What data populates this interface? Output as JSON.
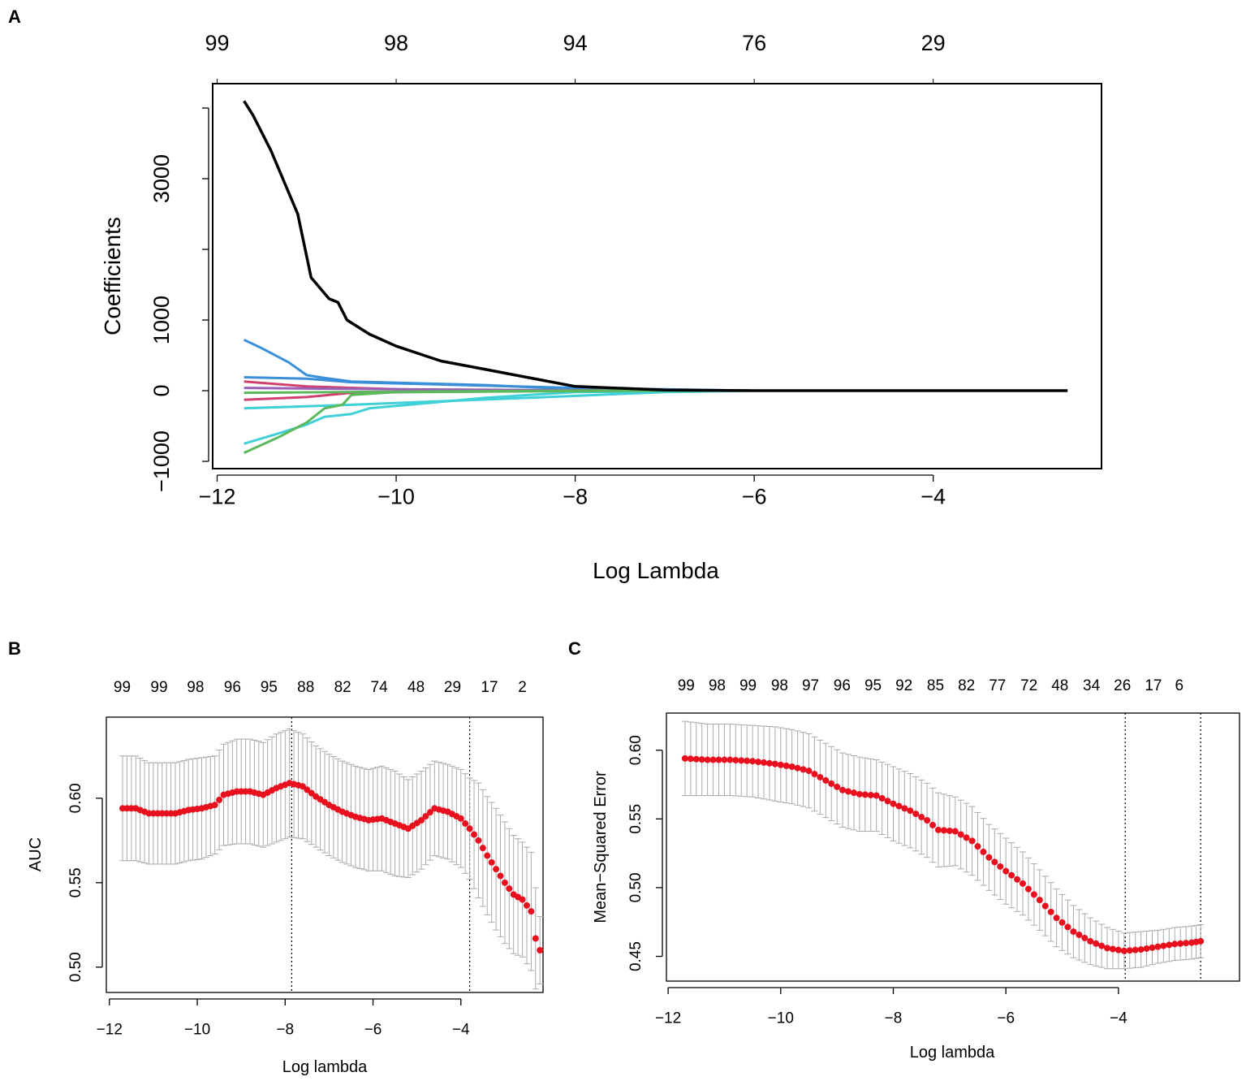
{
  "chart_data": [
    {
      "panel": "A",
      "type": "line",
      "xlabel": "Log Lambda",
      "ylabel": "Coefficients",
      "xlim": [
        -12.05,
        -2.12
      ],
      "ylim": [
        -1103,
        4345
      ],
      "x_ticks": [
        -12,
        -10,
        -8,
        -6,
        -4
      ],
      "x_tick_labels": [
        "−12",
        "−10",
        "−8",
        "−6",
        "−4"
      ],
      "y_ticks": [
        -1000,
        0,
        1000,
        2000,
        3000,
        4000
      ],
      "y_tick_labels": [
        "−1000",
        "0",
        "1000",
        "",
        "3000",
        ""
      ],
      "top_ticks": [
        -12,
        -10,
        -8,
        -6,
        -4
      ],
      "top_tick_labels": [
        "99",
        "98",
        "94",
        "76",
        "29"
      ],
      "series": [
        {
          "color": "#3a8fd9",
          "points": [
            [
              -11.7,
              720
            ],
            [
              -11.5,
              600
            ],
            [
              -11.2,
              400
            ],
            [
              -11.0,
              220
            ],
            [
              -10.8,
              180
            ],
            [
              -10.5,
              130
            ],
            [
              -9,
              80
            ],
            [
              -8,
              20
            ],
            [
              -6,
              0
            ],
            [
              -2.5,
              0
            ]
          ]
        },
        {
          "color": "#3a8fd9",
          "points": [
            [
              -11.7,
              190
            ],
            [
              -11,
              170
            ],
            [
              -10.5,
              120
            ],
            [
              -9,
              70
            ],
            [
              -8,
              40
            ],
            [
              -6,
              0
            ],
            [
              -2.5,
              0
            ]
          ]
        },
        {
          "color": "#d1416c",
          "points": [
            [
              -11.7,
              130
            ],
            [
              -11,
              60
            ],
            [
              -10,
              20
            ],
            [
              -9,
              5
            ],
            [
              -6,
              0
            ],
            [
              -2.5,
              0
            ]
          ]
        },
        {
          "color": "#d1416c",
          "points": [
            [
              -11.7,
              -130
            ],
            [
              -11,
              -90
            ],
            [
              -10.5,
              -30
            ],
            [
              -9,
              -5
            ],
            [
              -6,
              0
            ],
            [
              -2.5,
              0
            ]
          ]
        },
        {
          "color": "#9a5fb5",
          "points": [
            [
              -11.7,
              40
            ],
            [
              -10,
              20
            ],
            [
              -8,
              5
            ],
            [
              -6,
              0
            ],
            [
              -2.5,
              0
            ]
          ]
        },
        {
          "color": "#40d0d8",
          "points": [
            [
              -11.7,
              -750
            ],
            [
              -11.3,
              -600
            ],
            [
              -11,
              -480
            ],
            [
              -10.8,
              -370
            ],
            [
              -10.5,
              -330
            ],
            [
              -10.3,
              -250
            ],
            [
              -9,
              -100
            ],
            [
              -8,
              -20
            ],
            [
              -6,
              0
            ],
            [
              -2.5,
              0
            ]
          ]
        },
        {
          "color": "#40d0d8",
          "points": [
            [
              -11.7,
              -250
            ],
            [
              -11,
              -220
            ],
            [
              -10.5,
              -200
            ],
            [
              -8.5,
              -100
            ],
            [
              -7,
              -20
            ],
            [
              -6,
              0
            ],
            [
              -2.5,
              0
            ]
          ]
        },
        {
          "color": "#5cb85c",
          "points": [
            [
              -11.7,
              -880
            ],
            [
              -11.3,
              -650
            ],
            [
              -11,
              -450
            ],
            [
              -10.8,
              -250
            ],
            [
              -10.6,
              -200
            ],
            [
              -10.5,
              -60
            ],
            [
              -10,
              -20
            ],
            [
              -7,
              0
            ],
            [
              -2.5,
              0
            ]
          ]
        },
        {
          "color": "#5cb85c",
          "points": [
            [
              -11.7,
              -30
            ],
            [
              -10,
              -15
            ],
            [
              -8,
              0
            ],
            [
              -2.5,
              0
            ]
          ]
        },
        {
          "color": "#000000",
          "points": [
            [
              -11.7,
              4100
            ],
            [
              -11.6,
              3900
            ],
            [
              -11.4,
              3400
            ],
            [
              -11.1,
              2500
            ],
            [
              -10.95,
              1600
            ],
            [
              -10.75,
              1300
            ],
            [
              -10.65,
              1250
            ],
            [
              -10.55,
              1000
            ],
            [
              -10.3,
              800
            ],
            [
              -10,
              630
            ],
            [
              -9.5,
              420
            ],
            [
              -9,
              300
            ],
            [
              -8.5,
              180
            ],
            [
              -8,
              60
            ],
            [
              -7,
              10
            ],
            [
              -6,
              0
            ],
            [
              -2.5,
              0
            ]
          ]
        }
      ]
    },
    {
      "panel": "B",
      "type": "scatter",
      "xlabel": "Log lambda",
      "ylabel": "AUC",
      "xlim": [
        -12.07,
        -2.13
      ],
      "ylim": [
        0.485,
        0.648
      ],
      "x_ticks": [
        -12,
        -10,
        -8,
        -6,
        -4
      ],
      "x_tick_labels": [
        "−12",
        "−10",
        "−8",
        "−6",
        "−4"
      ],
      "y_ticks": [
        0.5,
        0.55,
        0.6
      ],
      "y_tick_labels": [
        "0.50",
        "0.55",
        "0.60"
      ],
      "top_ticks": [
        -11.71,
        -10.87,
        -10.04,
        -9.2,
        -8.37,
        -7.53,
        -6.69,
        -5.86,
        -5.02,
        -4.19,
        -3.35,
        -2.6
      ],
      "top_tick_labels": [
        "99",
        "99",
        "98",
        "96",
        "95",
        "88",
        "82",
        "74",
        "48",
        "29",
        "17",
        "2"
      ],
      "vlines": [
        -7.85,
        -3.8
      ],
      "points": [
        [
          -11.7,
          0.594,
          0.031
        ],
        [
          -11.4,
          0.594,
          0.031
        ],
        [
          -11.1,
          0.591,
          0.03
        ],
        [
          -10.8,
          0.591,
          0.03
        ],
        [
          -10.5,
          0.591,
          0.03
        ],
        [
          -10.2,
          0.593,
          0.03
        ],
        [
          -9.9,
          0.594,
          0.03
        ],
        [
          -9.6,
          0.596,
          0.029
        ],
        [
          -9.4,
          0.602,
          0.03
        ],
        [
          -9.1,
          0.604,
          0.031
        ],
        [
          -8.8,
          0.604,
          0.031
        ],
        [
          -8.5,
          0.602,
          0.031
        ],
        [
          -8.2,
          0.606,
          0.032
        ],
        [
          -7.9,
          0.609,
          0.032
        ],
        [
          -7.6,
          0.607,
          0.031
        ],
        [
          -7.3,
          0.601,
          0.03
        ],
        [
          -7.0,
          0.596,
          0.03
        ],
        [
          -6.7,
          0.592,
          0.03
        ],
        [
          -6.4,
          0.589,
          0.03
        ],
        [
          -6.1,
          0.587,
          0.03
        ],
        [
          -5.8,
          0.588,
          0.031
        ],
        [
          -5.5,
          0.585,
          0.031
        ],
        [
          -5.2,
          0.582,
          0.029
        ],
        [
          -4.9,
          0.587,
          0.029
        ],
        [
          -4.6,
          0.594,
          0.028
        ],
        [
          -4.3,
          0.592,
          0.028
        ],
        [
          -4.0,
          0.588,
          0.029
        ],
        [
          -3.8,
          0.582,
          0.03
        ],
        [
          -3.6,
          0.575,
          0.034
        ],
        [
          -3.4,
          0.566,
          0.035
        ],
        [
          -3.2,
          0.558,
          0.036
        ],
        [
          -3.0,
          0.55,
          0.036
        ],
        [
          -2.8,
          0.543,
          0.035
        ],
        [
          -2.6,
          0.54,
          0.034
        ],
        [
          -2.4,
          0.533,
          0.035
        ],
        [
          -2.3,
          0.517,
          0.03
        ],
        [
          -2.2,
          0.51,
          0.02
        ]
      ]
    },
    {
      "panel": "C",
      "type": "scatter",
      "xlabel": "Log lambda",
      "ylabel": "Mean−Squared Error",
      "xlim": [
        -12.03,
        -1.85
      ],
      "ylim": [
        0.432,
        0.627
      ],
      "x_ticks": [
        -12,
        -10,
        -8,
        -6,
        -4
      ],
      "x_tick_labels": [
        "−12",
        "−10",
        "−8",
        "−6",
        "−4"
      ],
      "y_ticks": [
        0.45,
        0.5,
        0.55,
        0.6
      ],
      "y_tick_labels": [
        "0.45",
        "0.50",
        "0.55",
        "0.60"
      ],
      "top_ticks": [
        -11.68,
        -11.13,
        -10.58,
        -10.02,
        -9.47,
        -8.91,
        -8.36,
        -7.81,
        -7.25,
        -6.7,
        -6.15,
        -5.59,
        -5.04,
        -4.48,
        -3.93,
        -3.38,
        -2.92
      ],
      "top_tick_labels": [
        "99",
        "98",
        "99",
        "98",
        "97",
        "96",
        "95",
        "92",
        "85",
        "82",
        "77",
        "72",
        "48",
        "34",
        "26",
        "17",
        "6"
      ],
      "vlines": [
        -3.88,
        -2.54
      ],
      "points": [
        [
          -11.7,
          0.594,
          0.027
        ],
        [
          -11.3,
          0.593,
          0.026
        ],
        [
          -10.9,
          0.593,
          0.026
        ],
        [
          -10.5,
          0.592,
          0.026
        ],
        [
          -10.1,
          0.59,
          0.027
        ],
        [
          -9.8,
          0.588,
          0.027
        ],
        [
          -9.5,
          0.585,
          0.027
        ],
        [
          -9.2,
          0.578,
          0.027
        ],
        [
          -8.9,
          0.571,
          0.027
        ],
        [
          -8.6,
          0.568,
          0.027
        ],
        [
          -8.3,
          0.567,
          0.026
        ],
        [
          -8.0,
          0.561,
          0.027
        ],
        [
          -7.7,
          0.556,
          0.027
        ],
        [
          -7.4,
          0.549,
          0.027
        ],
        [
          -7.2,
          0.542,
          0.027
        ],
        [
          -6.9,
          0.541,
          0.025
        ],
        [
          -6.6,
          0.534,
          0.025
        ],
        [
          -6.3,
          0.522,
          0.024
        ],
        [
          -6.0,
          0.512,
          0.024
        ],
        [
          -5.7,
          0.503,
          0.023
        ],
        [
          -5.4,
          0.491,
          0.022
        ],
        [
          -5.1,
          0.478,
          0.021
        ],
        [
          -4.8,
          0.468,
          0.019
        ],
        [
          -4.5,
          0.461,
          0.017
        ],
        [
          -4.2,
          0.456,
          0.015
        ],
        [
          -3.9,
          0.454,
          0.013
        ],
        [
          -3.6,
          0.455,
          0.013
        ],
        [
          -3.3,
          0.457,
          0.012
        ],
        [
          -3.0,
          0.459,
          0.012
        ],
        [
          -2.7,
          0.46,
          0.012
        ],
        [
          -2.54,
          0.461,
          0.012
        ]
      ]
    }
  ],
  "panel_labels": [
    "A",
    "B",
    "C"
  ]
}
